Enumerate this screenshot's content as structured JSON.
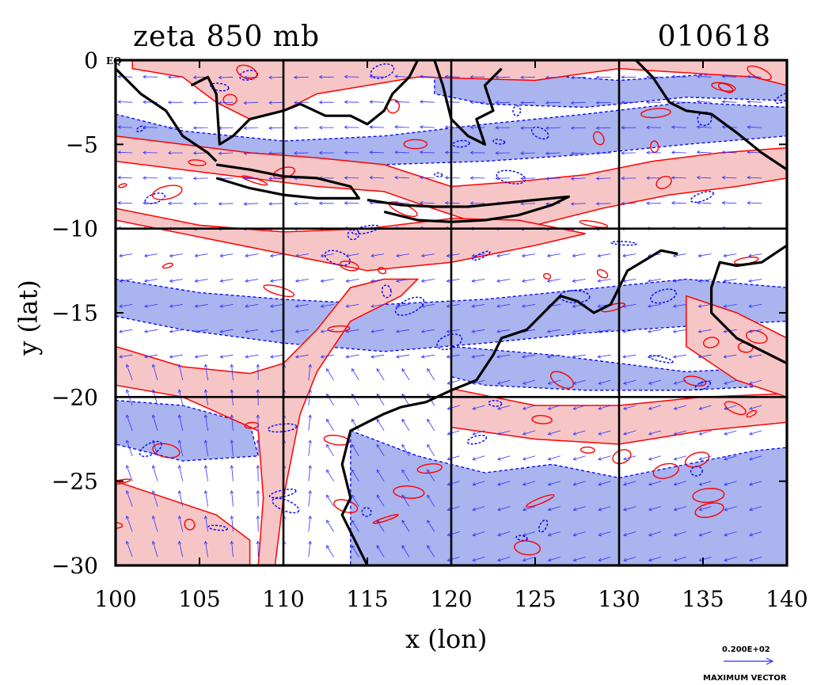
{
  "chart_data": {
    "type": "contour",
    "title_left": "zeta 850 mb",
    "title_right": "010618",
    "xlabel": "x (lon)",
    "ylabel": "y (lat)",
    "xlim": [
      100,
      140
    ],
    "ylim": [
      -30,
      0
    ],
    "x_ticks": [
      100,
      105,
      110,
      115,
      120,
      125,
      130,
      135,
      140
    ],
    "y_ticks": [
      0,
      -5,
      -10,
      -15,
      -20,
      -25,
      -30
    ],
    "y_tick_labels": [
      "0",
      "−5",
      "−10",
      "−15",
      "−20",
      "−25",
      "−30"
    ],
    "eq_label": "EQ",
    "grid_lons": [
      110,
      120,
      130
    ],
    "grid_lats": [
      -10,
      -20
    ],
    "grid": true,
    "fill_colors": {
      "positive": "#f6c6c6",
      "negative": "#aab4ee"
    },
    "contour_colors": {
      "positive": "#ff0000",
      "negative": "#0000ff"
    },
    "vector_color": "#3030ff",
    "coastline_color": "#000000",
    "legend": {
      "value": "0.200E+02",
      "caption": "MAXIMUM VECTOR",
      "placement": "bottom-right"
    },
    "regions": {
      "pink_bands": [
        {
          "name": "northern-band",
          "points": [
            [
              100,
              -6
            ],
            [
              104,
              -6.5
            ],
            [
              108,
              -7
            ],
            [
              112,
              -7.5
            ],
            [
              116,
              -7.8
            ],
            [
              118,
              -8.5
            ],
            [
              121,
              -9.5
            ],
            [
              125,
              -9.8
            ],
            [
              129,
              -8.8
            ],
            [
              133,
              -8
            ],
            [
              137,
              -7.5
            ],
            [
              140,
              -7
            ],
            [
              140,
              -5.2
            ],
            [
              136,
              -5.5
            ],
            [
              132,
              -6
            ],
            [
              128,
              -6.8
            ],
            [
              124,
              -7.2
            ],
            [
              120,
              -7.5
            ],
            [
              116,
              -6.2
            ],
            [
              112,
              -5.8
            ],
            [
              108,
              -5.5
            ],
            [
              104,
              -5
            ],
            [
              100,
              -4.5
            ]
          ]
        },
        {
          "name": "central-band",
          "points": [
            [
              100,
              -9.5
            ],
            [
              105,
              -10.5
            ],
            [
              110,
              -11.5
            ],
            [
              115,
              -12.5
            ],
            [
              120,
              -12
            ],
            [
              125,
              -11
            ],
            [
              128,
              -10.3
            ],
            [
              124,
              -9.5
            ],
            [
              120,
              -9.4
            ],
            [
              115,
              -10
            ],
            [
              110,
              -10.2
            ],
            [
              105,
              -9.8
            ],
            [
              100,
              -8.8
            ]
          ]
        },
        {
          "name": "north-strip",
          "points": [
            [
              101,
              -0.5
            ],
            [
              104,
              -1
            ],
            [
              106,
              -2.5
            ],
            [
              108,
              -3.5
            ],
            [
              110,
              -3
            ],
            [
              112,
              -2
            ],
            [
              118,
              -1
            ],
            [
              125,
              -1.2
            ],
            [
              130,
              -0.5
            ],
            [
              138,
              -1
            ],
            [
              140,
              -1.5
            ],
            [
              140,
              0
            ],
            [
              101,
              0
            ]
          ]
        },
        {
          "name": "south-east-band",
          "points": [
            [
              120,
              -19.5
            ],
            [
              125,
              -20.5
            ],
            [
              130,
              -20.5
            ],
            [
              135,
              -20
            ],
            [
              140,
              -19.8
            ],
            [
              140,
              -21.5
            ],
            [
              135,
              -22
            ],
            [
              130,
              -22.8
            ],
            [
              125,
              -22.5
            ],
            [
              120,
              -21.8
            ]
          ]
        },
        {
          "name": "west-diagonal",
          "points": [
            [
              100,
              -17
            ],
            [
              104,
              -18.2
            ],
            [
              108,
              -18.6
            ],
            [
              110,
              -18
            ],
            [
              112,
              -16
            ],
            [
              114,
              -13.5
            ],
            [
              116,
              -13
            ],
            [
              118,
              -13
            ],
            [
              117,
              -14
            ],
            [
              114,
              -15.5
            ],
            [
              112,
              -18.5
            ],
            [
              111,
              -21
            ],
            [
              110,
              -26
            ],
            [
              109.5,
              -30
            ],
            [
              108.5,
              -30
            ],
            [
              108.8,
              -26
            ],
            [
              108.5,
              -22
            ],
            [
              104,
              -20
            ],
            [
              100,
              -19.3
            ]
          ]
        },
        {
          "name": "southwest-lobe",
          "points": [
            [
              100,
              -25
            ],
            [
              103,
              -26
            ],
            [
              106,
              -27
            ],
            [
              108,
              -28.5
            ],
            [
              108,
              -30
            ],
            [
              100,
              -30
            ]
          ]
        },
        {
          "name": "east-coast-band",
          "points": [
            [
              134,
              -14
            ],
            [
              137,
              -15
            ],
            [
              140,
              -16.5
            ],
            [
              140,
              -20
            ],
            [
              137,
              -19
            ],
            [
              134,
              -17
            ]
          ]
        }
      ],
      "blue_bands": [
        {
          "name": "north-band",
          "points": [
            [
              100,
              -3.2
            ],
            [
              104,
              -4.2
            ],
            [
              110,
              -4.8
            ],
            [
              116,
              -4.5
            ],
            [
              122,
              -3.8
            ],
            [
              128,
              -3.2
            ],
            [
              134,
              -2.5
            ],
            [
              140,
              -2.8
            ],
            [
              140,
              -4.5
            ],
            [
              134,
              -5
            ],
            [
              128,
              -5.6
            ],
            [
              122,
              -6
            ],
            [
              116,
              -6.2
            ],
            [
              110,
              -6.6
            ],
            [
              104,
              -6
            ],
            [
              100,
              -5.2
            ]
          ]
        },
        {
          "name": "mid-band",
          "points": [
            [
              100,
              -13
            ],
            [
              105,
              -13.8
            ],
            [
              110,
              -14.2
            ],
            [
              116,
              -14.5
            ],
            [
              122,
              -14.2
            ],
            [
              128,
              -13.6
            ],
            [
              134,
              -13
            ],
            [
              140,
              -13.5
            ],
            [
              140,
              -15.5
            ],
            [
              134,
              -15.8
            ],
            [
              128,
              -16.2
            ],
            [
              122,
              -16.8
            ],
            [
              116,
              -17.3
            ],
            [
              110,
              -16.8
            ],
            [
              104,
              -16
            ],
            [
              100,
              -15.2
            ]
          ]
        },
        {
          "name": "south-band",
          "points": [
            [
              100,
              -20.2
            ],
            [
              104,
              -20.5
            ],
            [
              108,
              -21.6
            ],
            [
              108.5,
              -23.5
            ],
            [
              104,
              -23.8
            ],
            [
              100,
              -22.8
            ]
          ]
        },
        {
          "name": "southern-sea",
          "points": [
            [
              114,
              -22
            ],
            [
              118,
              -23.5
            ],
            [
              122,
              -24.5
            ],
            [
              126,
              -24
            ],
            [
              130,
              -24.8
            ],
            [
              134,
              -24
            ],
            [
              138,
              -23.2
            ],
            [
              140,
              -23
            ],
            [
              140,
              -30
            ],
            [
              130,
              -30
            ],
            [
              120,
              -30
            ],
            [
              114,
              -30
            ]
          ]
        },
        {
          "name": "east-mid",
          "points": [
            [
              120,
              -17
            ],
            [
              126,
              -17.5
            ],
            [
              130,
              -18
            ],
            [
              134,
              -18.5
            ],
            [
              138,
              -18.3
            ],
            [
              140,
              -18
            ],
            [
              140,
              -19.3
            ],
            [
              134,
              -19.6
            ],
            [
              128,
              -19.6
            ],
            [
              122,
              -19.3
            ],
            [
              120,
              -18.8
            ]
          ]
        },
        {
          "name": "north-east-cluster",
          "points": [
            [
              119,
              0
            ],
            [
              124,
              -0.8
            ],
            [
              130,
              -1.2
            ],
            [
              136,
              -0.8
            ],
            [
              140,
              -1
            ],
            [
              140,
              -2.4
            ],
            [
              134,
              -2.2
            ],
            [
              128,
              -2.8
            ],
            [
              122,
              -2.6
            ],
            [
              119,
              -2
            ]
          ]
        }
      ]
    },
    "coastlines": [
      {
        "name": "borneo-south",
        "points": [
          [
            104.5,
            -1.5
          ],
          [
            105.5,
            -1
          ],
          [
            106,
            -2
          ],
          [
            106.2,
            -5
          ],
          [
            107,
            -4.5
          ],
          [
            108,
            -3.5
          ],
          [
            110,
            -3
          ],
          [
            111,
            -2.6
          ],
          [
            112.5,
            -3.3
          ],
          [
            114,
            -3.3
          ],
          [
            115,
            -3.8
          ],
          [
            116,
            -3
          ],
          [
            116.5,
            -2
          ],
          [
            117.5,
            -1
          ],
          [
            118,
            0
          ]
        ]
      },
      {
        "name": "sumatra",
        "points": [
          [
            100,
            -0.5
          ],
          [
            101.5,
            -2
          ],
          [
            103,
            -3
          ],
          [
            104,
            -4.5
          ],
          [
            105.5,
            -5.5
          ],
          [
            106,
            -6
          ]
        ]
      },
      {
        "name": "java",
        "points": [
          [
            106,
            -6.2
          ],
          [
            108,
            -6.5
          ],
          [
            110,
            -6.9
          ],
          [
            112,
            -7
          ],
          [
            114,
            -7.5
          ],
          [
            114.5,
            -8.2
          ],
          [
            112,
            -8.2
          ],
          [
            110,
            -8
          ],
          [
            108,
            -7.6
          ],
          [
            106,
            -7
          ]
        ]
      },
      {
        "name": "nusa-tenggara",
        "points": [
          [
            115,
            -8.3
          ],
          [
            117,
            -8.6
          ],
          [
            119,
            -8.7
          ],
          [
            121,
            -8.7
          ],
          [
            123,
            -8.5
          ],
          [
            125,
            -8.3
          ],
          [
            127,
            -8.1
          ],
          [
            126,
            -8.6
          ],
          [
            124,
            -9.2
          ],
          [
            122,
            -9.5
          ],
          [
            120,
            -9.6
          ],
          [
            118,
            -9.5
          ],
          [
            116,
            -9
          ]
        ]
      },
      {
        "name": "sulawesi",
        "points": [
          [
            119,
            0
          ],
          [
            119.5,
            -1.5
          ],
          [
            120,
            -3.5
          ],
          [
            121,
            -4.5
          ],
          [
            122,
            -5
          ],
          [
            121.5,
            -3.5
          ],
          [
            122.5,
            -3
          ],
          [
            122,
            -1.5
          ],
          [
            123,
            -0.5
          ]
        ]
      },
      {
        "name": "new-guinea-south",
        "points": [
          [
            131,
            0
          ],
          [
            132,
            -1
          ],
          [
            133,
            -2.5
          ],
          [
            134,
            -3
          ],
          [
            135.5,
            -3.2
          ],
          [
            137,
            -4.3
          ],
          [
            138.5,
            -5.5
          ],
          [
            140,
            -6.5
          ]
        ]
      },
      {
        "name": "australia-north",
        "points": [
          [
            140,
            -11
          ],
          [
            138.5,
            -12
          ],
          [
            137,
            -12.2
          ],
          [
            136,
            -12
          ],
          [
            135.5,
            -13.5
          ],
          [
            135.5,
            -15
          ],
          [
            136,
            -15.5
          ],
          [
            137,
            -16.5
          ],
          [
            139,
            -17.5
          ],
          [
            140,
            -18
          ]
        ]
      },
      {
        "name": "australia-northwest",
        "points": [
          [
            133.5,
            -11.5
          ],
          [
            132.5,
            -11.3
          ],
          [
            131,
            -12.2
          ],
          [
            130.5,
            -12.5
          ],
          [
            130,
            -13.5
          ],
          [
            129.5,
            -14.5
          ],
          [
            128.5,
            -15
          ],
          [
            127.5,
            -14.3
          ],
          [
            126.5,
            -14
          ],
          [
            125.5,
            -15
          ],
          [
            124.5,
            -16
          ],
          [
            123,
            -16.5
          ],
          [
            122.5,
            -17.5
          ],
          [
            121.5,
            -19
          ],
          [
            120,
            -19.6
          ],
          [
            118.5,
            -20.3
          ],
          [
            117,
            -20.6
          ],
          [
            116,
            -21
          ],
          [
            115,
            -21.5
          ],
          [
            114,
            -22
          ],
          [
            113.5,
            -24
          ],
          [
            114,
            -26
          ],
          [
            113.5,
            -27
          ],
          [
            114,
            -28
          ],
          [
            114.5,
            -29
          ],
          [
            115,
            -30
          ]
        ]
      }
    ]
  }
}
